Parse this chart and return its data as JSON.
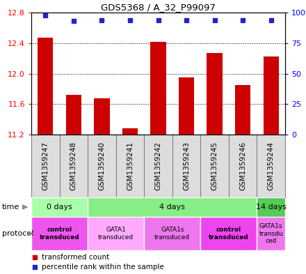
{
  "title": "GDS5368 / A_32_P99097",
  "samples": [
    "GSM1359247",
    "GSM1359248",
    "GSM1359240",
    "GSM1359241",
    "GSM1359242",
    "GSM1359243",
    "GSM1359245",
    "GSM1359246",
    "GSM1359244"
  ],
  "transformed_counts": [
    12.47,
    11.72,
    11.68,
    11.28,
    12.42,
    11.95,
    12.27,
    11.85,
    12.22
  ],
  "percentile_ranks": [
    98,
    93,
    94,
    94,
    94,
    94,
    94,
    94,
    94
  ],
  "y_min": 11.2,
  "y_max": 12.8,
  "y_ticks": [
    11.2,
    11.6,
    12.0,
    12.4,
    12.8
  ],
  "y_right_ticks": [
    0,
    25,
    50,
    75,
    100
  ],
  "bar_color": "#cc0000",
  "dot_color": "#2222cc",
  "bar_bottom": 11.2,
  "time_groups": [
    {
      "label": "0 days",
      "start": 0,
      "end": 2,
      "color": "#aaffaa"
    },
    {
      "label": "4 days",
      "start": 2,
      "end": 8,
      "color": "#88ee88"
    },
    {
      "label": "14 days",
      "start": 8,
      "end": 9,
      "color": "#55cc55"
    }
  ],
  "protocol_groups": [
    {
      "label": "control\ntransduced",
      "start": 0,
      "end": 2,
      "color": "#ee55ee",
      "bold": true
    },
    {
      "label": "GATA1\ntransduced",
      "start": 2,
      "end": 4,
      "color": "#ffaaff",
      "bold": false
    },
    {
      "label": "GATA1s\ntransduced",
      "start": 4,
      "end": 6,
      "color": "#ee77ee",
      "bold": false
    },
    {
      "label": "control\ntransduced",
      "start": 6,
      "end": 8,
      "color": "#ee44ee",
      "bold": true
    },
    {
      "label": "GATA1s\ntransdu\nced",
      "start": 8,
      "end": 9,
      "color": "#ee77ee",
      "bold": false
    }
  ],
  "legend_red_label": "transformed count",
  "legend_blue_label": "percentile rank within the sample"
}
